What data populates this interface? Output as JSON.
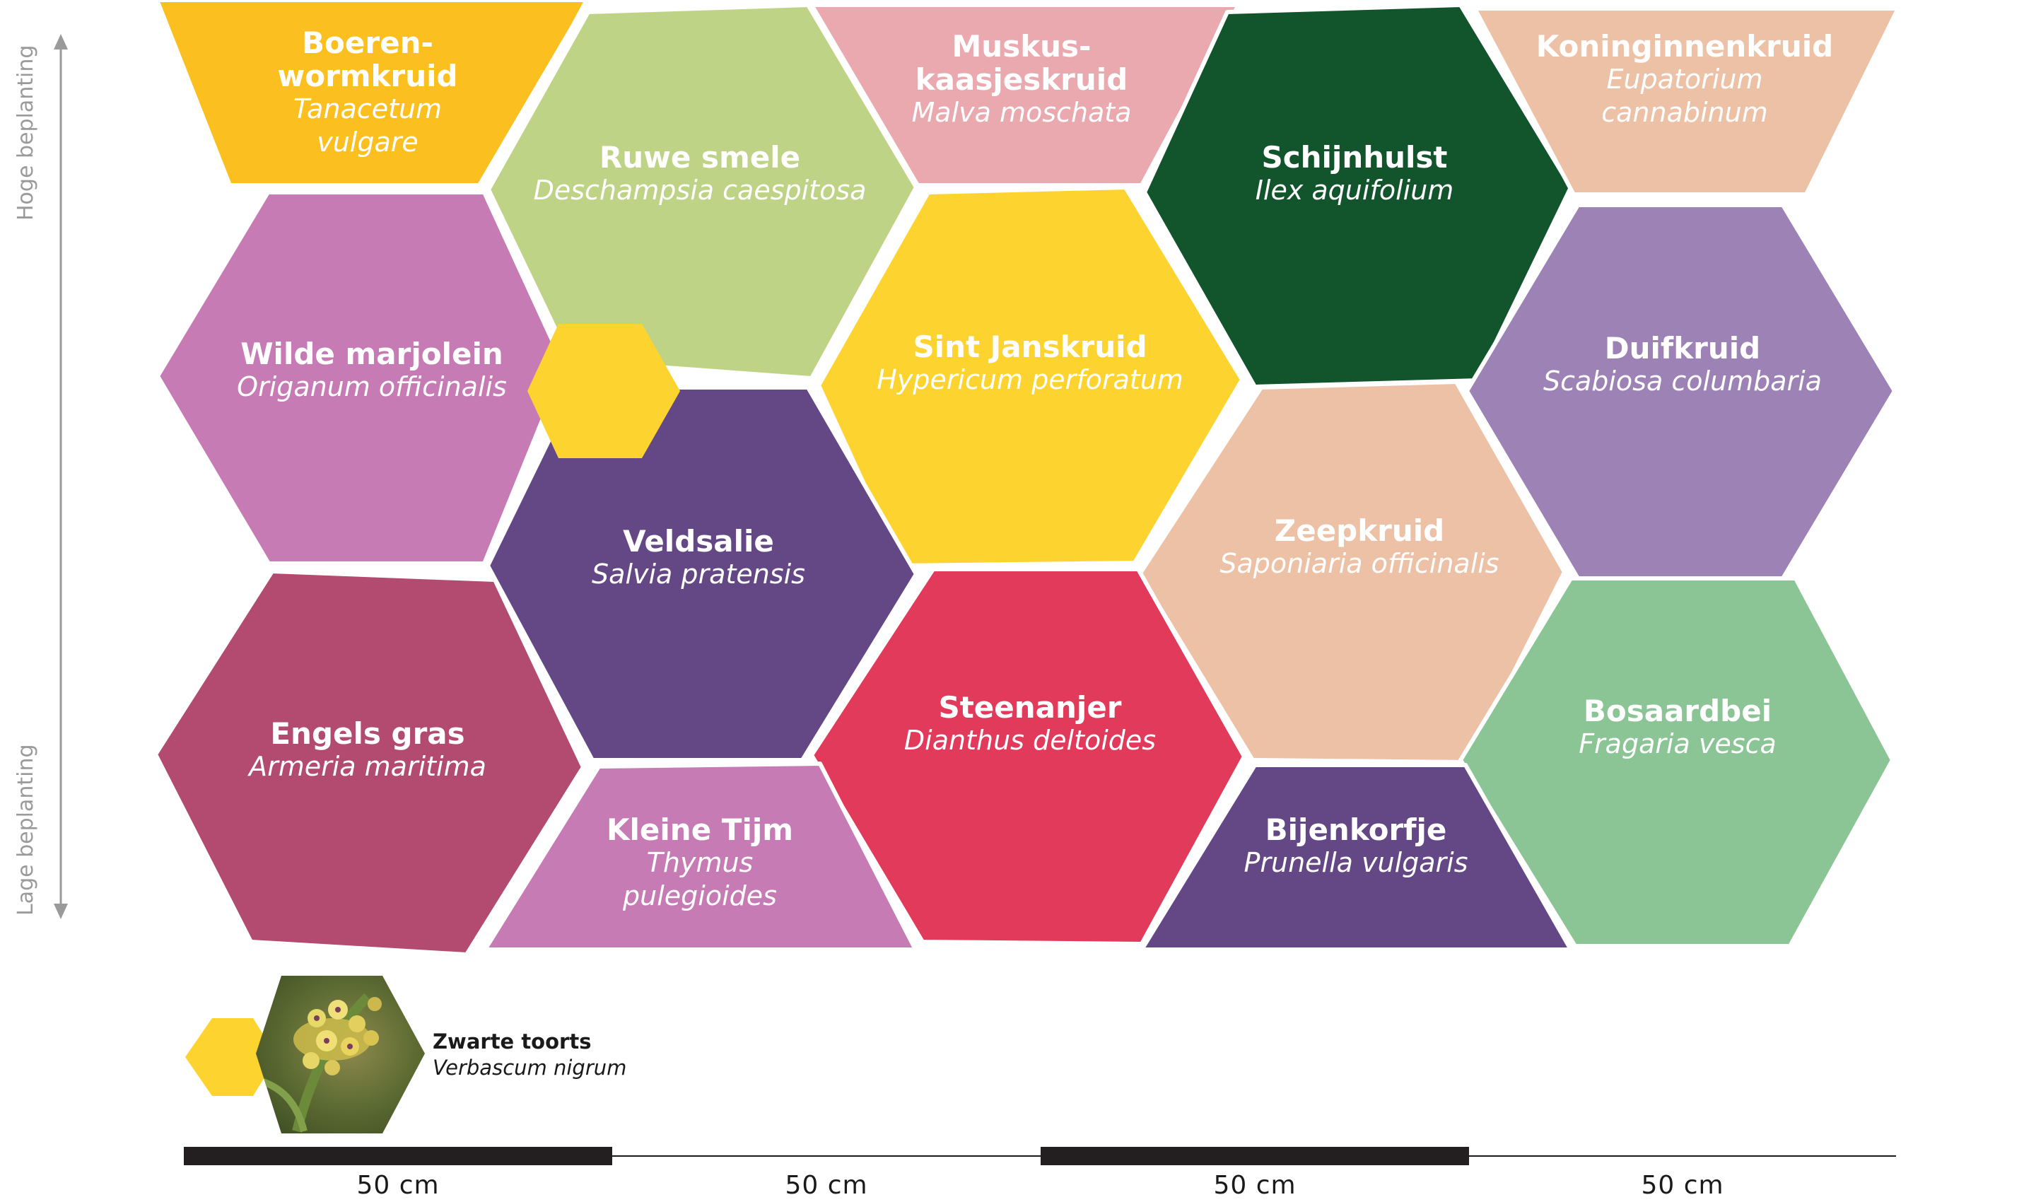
{
  "axis": {
    "top_label": "Hoge beplanting",
    "bottom_label": "Lage beplanting"
  },
  "plants": [
    {
      "id": "boerenwormkruid",
      "name": [
        "Boeren-",
        "wormkruid"
      ],
      "sci": [
        "Tanacetum",
        "vulgare"
      ],
      "color": "#FBBF1F"
    },
    {
      "id": "ruwe-smele",
      "name": [
        "Ruwe smele"
      ],
      "sci": [
        "Deschampsia caespitosa"
      ],
      "color": "#BFD386"
    },
    {
      "id": "muskuskaasjeskruid",
      "name": [
        "Muskus-",
        "kaasjeskruid"
      ],
      "sci": [
        "Malva moschata"
      ],
      "color": "#E9A9AE"
    },
    {
      "id": "schijnhulst",
      "name": [
        "Schijnhulst"
      ],
      "sci": [
        "Ilex aquifolium"
      ],
      "color": "#12552C"
    },
    {
      "id": "koninginnenkruid",
      "name": [
        "Koninginnenkruid"
      ],
      "sci": [
        "Eupatorium",
        "cannabinum"
      ],
      "color": "#ECC1A6"
    },
    {
      "id": "wilde-marjolein",
      "name": [
        "Wilde marjolein"
      ],
      "sci": [
        "Origanum officinalis"
      ],
      "color": "#C67BB4"
    },
    {
      "id": "sint-janskruid",
      "name": [
        "Sint Janskruid"
      ],
      "sci": [
        "Hypericum perforatum"
      ],
      "color": "#FDD42F"
    },
    {
      "id": "duifkruid",
      "name": [
        "Duifkruid"
      ],
      "sci": [
        "Scabiosa columbaria"
      ],
      "color": "#9D82B6"
    },
    {
      "id": "veldsalie",
      "name": [
        "Veldsalie"
      ],
      "sci": [
        "Salvia pratensis"
      ],
      "color": "#644886"
    },
    {
      "id": "zeepkruid",
      "name": [
        "Zeepkruid"
      ],
      "sci": [
        "Saponiaria officinalis"
      ],
      "color": "#ECC1A6"
    },
    {
      "id": "engels-gras",
      "name": [
        "Engels gras"
      ],
      "sci": [
        "Armeria maritima"
      ],
      "color": "#B34A6F"
    },
    {
      "id": "steenanjer",
      "name": [
        "Steenanjer"
      ],
      "sci": [
        "Dianthus deltoides"
      ],
      "color": "#E13A5B"
    },
    {
      "id": "bosaardbei",
      "name": [
        "Bosaardbei"
      ],
      "sci": [
        "Fragaria vesca"
      ],
      "color": "#8BC495"
    },
    {
      "id": "kleine-tijm",
      "name": [
        "Kleine Tijm"
      ],
      "sci": [
        "Thymus",
        "pulegioides"
      ],
      "color": "#C67BB4"
    },
    {
      "id": "bijenkorfje",
      "name": [
        "Bijenkorfje"
      ],
      "sci": [
        "Prunella vulgaris"
      ],
      "color": "#644886"
    }
  ],
  "accent": {
    "color": "#FDD42F"
  },
  "legend": {
    "name": "Zwarte toorts",
    "sci": "Verbascum nigrum",
    "marker_color": "#FDD42F"
  },
  "scale": {
    "labels": [
      "50 cm",
      "50 cm",
      "50 cm",
      "50 cm"
    ]
  }
}
